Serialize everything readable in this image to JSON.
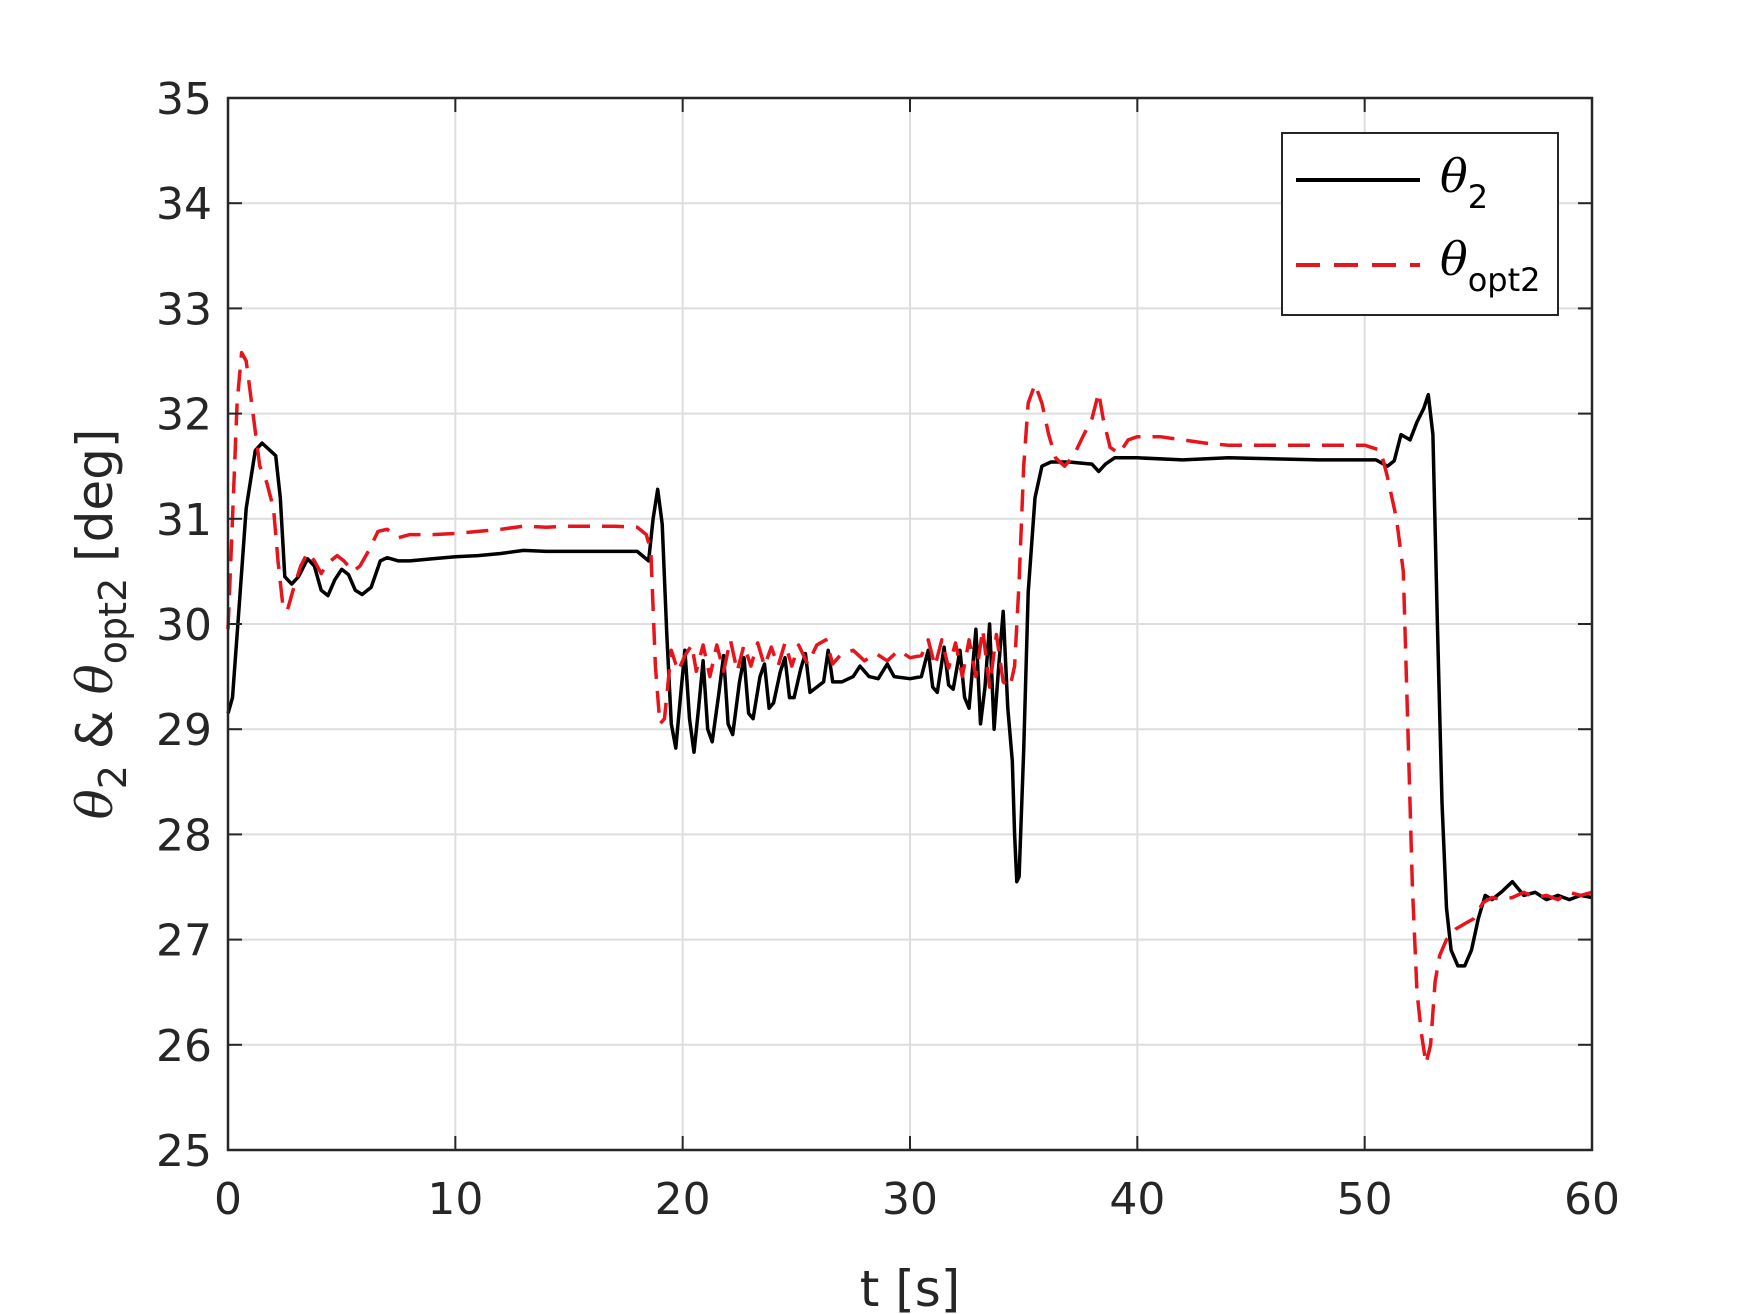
{
  "chart_data": {
    "type": "line",
    "xlabel": "t [s]",
    "ylabel": {
      "sym1": "θ",
      "sub1": "2",
      "amp": " & ",
      "sym2": "θ",
      "sub2": "opt2",
      "unit": " [deg]"
    },
    "xlim": [
      0,
      60
    ],
    "ylim": [
      25,
      35
    ],
    "xticks": [
      0,
      10,
      20,
      30,
      40,
      50,
      60
    ],
    "yticks": [
      25,
      26,
      27,
      28,
      29,
      30,
      31,
      32,
      33,
      34,
      35
    ],
    "grid": true,
    "legend_position": "top-right",
    "series": [
      {
        "name": "θ2",
        "legend_symbol": "θ",
        "legend_sub": "2",
        "color": "#000000",
        "style": "solid",
        "points": [
          [
            0.0,
            29.15
          ],
          [
            0.2,
            29.3
          ],
          [
            0.5,
            30.2
          ],
          [
            0.8,
            31.1
          ],
          [
            1.2,
            31.65
          ],
          [
            1.5,
            31.72
          ],
          [
            1.8,
            31.66
          ],
          [
            2.1,
            31.6
          ],
          [
            2.3,
            31.2
          ],
          [
            2.5,
            30.45
          ],
          [
            2.8,
            30.38
          ],
          [
            3.1,
            30.45
          ],
          [
            3.5,
            30.62
          ],
          [
            3.8,
            30.55
          ],
          [
            4.1,
            30.32
          ],
          [
            4.4,
            30.27
          ],
          [
            4.7,
            30.42
          ],
          [
            5.0,
            30.52
          ],
          [
            5.3,
            30.47
          ],
          [
            5.6,
            30.32
          ],
          [
            5.9,
            30.28
          ],
          [
            6.3,
            30.35
          ],
          [
            6.7,
            30.6
          ],
          [
            7.0,
            30.63
          ],
          [
            7.5,
            30.6
          ],
          [
            8.0,
            30.6
          ],
          [
            9.0,
            30.62
          ],
          [
            10.0,
            30.64
          ],
          [
            11.0,
            30.65
          ],
          [
            12.0,
            30.67
          ],
          [
            13.0,
            30.7
          ],
          [
            14.0,
            30.69
          ],
          [
            15.0,
            30.69
          ],
          [
            16.0,
            30.69
          ],
          [
            17.0,
            30.69
          ],
          [
            18.0,
            30.69
          ],
          [
            18.5,
            30.6
          ],
          [
            18.7,
            31.0
          ],
          [
            18.9,
            31.28
          ],
          [
            19.1,
            30.95
          ],
          [
            19.3,
            29.9
          ],
          [
            19.5,
            29.05
          ],
          [
            19.7,
            28.82
          ],
          [
            19.9,
            29.3
          ],
          [
            20.1,
            29.75
          ],
          [
            20.3,
            29.1
          ],
          [
            20.5,
            28.78
          ],
          [
            20.7,
            29.2
          ],
          [
            20.9,
            29.65
          ],
          [
            21.1,
            29.0
          ],
          [
            21.3,
            28.88
          ],
          [
            21.6,
            29.35
          ],
          [
            21.8,
            29.7
          ],
          [
            22.0,
            29.05
          ],
          [
            22.2,
            28.95
          ],
          [
            22.5,
            29.45
          ],
          [
            22.7,
            29.68
          ],
          [
            22.9,
            29.15
          ],
          [
            23.1,
            29.1
          ],
          [
            23.4,
            29.5
          ],
          [
            23.6,
            29.62
          ],
          [
            23.8,
            29.2
          ],
          [
            24.0,
            29.25
          ],
          [
            24.3,
            29.55
          ],
          [
            24.5,
            29.68
          ],
          [
            24.7,
            29.3
          ],
          [
            24.9,
            29.3
          ],
          [
            25.2,
            29.58
          ],
          [
            25.4,
            29.72
          ],
          [
            25.6,
            29.35
          ],
          [
            25.9,
            29.4
          ],
          [
            26.2,
            29.45
          ],
          [
            26.4,
            29.75
          ],
          [
            26.6,
            29.45
          ],
          [
            27.0,
            29.45
          ],
          [
            27.5,
            29.5
          ],
          [
            27.8,
            29.6
          ],
          [
            28.2,
            29.5
          ],
          [
            28.6,
            29.48
          ],
          [
            29.0,
            29.62
          ],
          [
            29.3,
            29.5
          ],
          [
            30.0,
            29.48
          ],
          [
            30.5,
            29.5
          ],
          [
            30.8,
            29.75
          ],
          [
            31.0,
            29.4
          ],
          [
            31.2,
            29.35
          ],
          [
            31.5,
            29.78
          ],
          [
            31.7,
            29.42
          ],
          [
            31.9,
            29.38
          ],
          [
            32.2,
            29.75
          ],
          [
            32.4,
            29.3
          ],
          [
            32.6,
            29.2
          ],
          [
            32.9,
            29.95
          ],
          [
            33.1,
            29.05
          ],
          [
            33.3,
            29.4
          ],
          [
            33.5,
            30.0
          ],
          [
            33.7,
            29.0
          ],
          [
            33.9,
            29.6
          ],
          [
            34.1,
            30.12
          ],
          [
            34.3,
            29.2
          ],
          [
            34.5,
            28.7
          ],
          [
            34.6,
            28.0
          ],
          [
            34.7,
            27.55
          ],
          [
            34.8,
            27.6
          ],
          [
            35.0,
            28.8
          ],
          [
            35.2,
            30.3
          ],
          [
            35.5,
            31.2
          ],
          [
            35.8,
            31.5
          ],
          [
            36.2,
            31.54
          ],
          [
            37.0,
            31.54
          ],
          [
            38.0,
            31.52
          ],
          [
            38.3,
            31.45
          ],
          [
            38.6,
            31.52
          ],
          [
            39.0,
            31.58
          ],
          [
            40.0,
            31.58
          ],
          [
            42.0,
            31.56
          ],
          [
            44.0,
            31.58
          ],
          [
            48.0,
            31.56
          ],
          [
            50.5,
            31.56
          ],
          [
            51.0,
            31.5
          ],
          [
            51.3,
            31.55
          ],
          [
            51.6,
            31.8
          ],
          [
            52.0,
            31.75
          ],
          [
            52.3,
            31.92
          ],
          [
            52.6,
            32.05
          ],
          [
            52.8,
            32.18
          ],
          [
            53.0,
            31.8
          ],
          [
            53.2,
            30.0
          ],
          [
            53.4,
            28.3
          ],
          [
            53.6,
            27.3
          ],
          [
            53.8,
            26.9
          ],
          [
            54.1,
            26.75
          ],
          [
            54.4,
            26.75
          ],
          [
            54.7,
            26.9
          ],
          [
            55.0,
            27.2
          ],
          [
            55.3,
            27.42
          ],
          [
            55.6,
            27.38
          ],
          [
            56.0,
            27.45
          ],
          [
            56.5,
            27.55
          ],
          [
            57.0,
            27.42
          ],
          [
            57.5,
            27.45
          ],
          [
            58.0,
            27.38
          ],
          [
            58.5,
            27.42
          ],
          [
            59.0,
            27.38
          ],
          [
            59.5,
            27.42
          ],
          [
            60.0,
            27.4
          ]
        ]
      },
      {
        "name": "θopt2",
        "legend_symbol": "θ",
        "legend_sub": "opt2",
        "color": "#e8141c",
        "style": "dashed",
        "points": [
          [
            0.0,
            29.95
          ],
          [
            0.2,
            31.0
          ],
          [
            0.4,
            32.1
          ],
          [
            0.6,
            32.58
          ],
          [
            0.8,
            32.5
          ],
          [
            1.1,
            32.0
          ],
          [
            1.4,
            31.5
          ],
          [
            1.7,
            31.35
          ],
          [
            2.0,
            31.1
          ],
          [
            2.2,
            30.6
          ],
          [
            2.4,
            30.2
          ],
          [
            2.6,
            30.12
          ],
          [
            2.9,
            30.35
          ],
          [
            3.2,
            30.55
          ],
          [
            3.5,
            30.68
          ],
          [
            3.8,
            30.6
          ],
          [
            4.1,
            30.48
          ],
          [
            4.4,
            30.58
          ],
          [
            4.8,
            30.65
          ],
          [
            5.1,
            30.6
          ],
          [
            5.5,
            30.5
          ],
          [
            5.8,
            30.55
          ],
          [
            6.2,
            30.7
          ],
          [
            6.6,
            30.88
          ],
          [
            7.0,
            30.9
          ],
          [
            7.5,
            30.82
          ],
          [
            8.0,
            30.85
          ],
          [
            9.0,
            30.85
          ],
          [
            10.0,
            30.86
          ],
          [
            11.0,
            30.88
          ],
          [
            12.0,
            30.9
          ],
          [
            13.0,
            30.93
          ],
          [
            14.0,
            30.92
          ],
          [
            15.0,
            30.93
          ],
          [
            16.0,
            30.93
          ],
          [
            17.0,
            30.93
          ],
          [
            18.0,
            30.92
          ],
          [
            18.4,
            30.85
          ],
          [
            18.6,
            30.7
          ],
          [
            18.8,
            29.6
          ],
          [
            19.0,
            29.05
          ],
          [
            19.2,
            29.1
          ],
          [
            19.5,
            29.75
          ],
          [
            19.8,
            29.55
          ],
          [
            20.1,
            29.7
          ],
          [
            20.4,
            29.8
          ],
          [
            20.6,
            29.55
          ],
          [
            20.9,
            29.8
          ],
          [
            21.2,
            29.5
          ],
          [
            21.5,
            29.8
          ],
          [
            21.8,
            29.55
          ],
          [
            22.1,
            29.85
          ],
          [
            22.4,
            29.55
          ],
          [
            22.7,
            29.8
          ],
          [
            23.0,
            29.6
          ],
          [
            23.3,
            29.82
          ],
          [
            23.6,
            29.6
          ],
          [
            23.9,
            29.78
          ],
          [
            24.2,
            29.6
          ],
          [
            24.5,
            29.82
          ],
          [
            24.8,
            29.6
          ],
          [
            25.1,
            29.8
          ],
          [
            25.5,
            29.62
          ],
          [
            25.9,
            29.8
          ],
          [
            26.3,
            29.85
          ],
          [
            26.6,
            29.62
          ],
          [
            27.0,
            29.72
          ],
          [
            27.5,
            29.75
          ],
          [
            28.0,
            29.65
          ],
          [
            28.5,
            29.72
          ],
          [
            29.0,
            29.65
          ],
          [
            29.5,
            29.75
          ],
          [
            30.0,
            29.68
          ],
          [
            30.5,
            29.7
          ],
          [
            30.8,
            29.85
          ],
          [
            31.1,
            29.6
          ],
          [
            31.4,
            29.85
          ],
          [
            31.7,
            29.58
          ],
          [
            32.0,
            29.82
          ],
          [
            32.3,
            29.5
          ],
          [
            32.6,
            29.85
          ],
          [
            32.9,
            29.5
          ],
          [
            33.2,
            29.95
          ],
          [
            33.5,
            29.4
          ],
          [
            33.8,
            29.9
          ],
          [
            34.1,
            29.45
          ],
          [
            34.4,
            29.4
          ],
          [
            34.6,
            29.6
          ],
          [
            34.8,
            30.4
          ],
          [
            35.0,
            31.5
          ],
          [
            35.2,
            32.1
          ],
          [
            35.5,
            32.28
          ],
          [
            35.8,
            32.1
          ],
          [
            36.1,
            31.8
          ],
          [
            36.4,
            31.58
          ],
          [
            36.8,
            31.5
          ],
          [
            37.2,
            31.6
          ],
          [
            37.6,
            31.78
          ],
          [
            38.0,
            31.95
          ],
          [
            38.3,
            32.2
          ],
          [
            38.5,
            31.95
          ],
          [
            38.8,
            31.68
          ],
          [
            39.2,
            31.62
          ],
          [
            39.6,
            31.75
          ],
          [
            40.0,
            31.78
          ],
          [
            41.0,
            31.78
          ],
          [
            42.0,
            31.75
          ],
          [
            43.0,
            31.72
          ],
          [
            44.0,
            31.7
          ],
          [
            46.0,
            31.7
          ],
          [
            48.0,
            31.7
          ],
          [
            50.0,
            31.7
          ],
          [
            50.7,
            31.65
          ],
          [
            51.0,
            31.4
          ],
          [
            51.4,
            31.0
          ],
          [
            51.7,
            30.5
          ],
          [
            51.9,
            29.0
          ],
          [
            52.1,
            27.5
          ],
          [
            52.3,
            26.5
          ],
          [
            52.5,
            26.1
          ],
          [
            52.7,
            25.82
          ],
          [
            52.9,
            26.0
          ],
          [
            53.1,
            26.6
          ],
          [
            53.3,
            26.85
          ],
          [
            53.6,
            27.0
          ],
          [
            54.0,
            27.1
          ],
          [
            54.4,
            27.15
          ],
          [
            54.8,
            27.2
          ],
          [
            55.2,
            27.35
          ],
          [
            55.6,
            27.4
          ],
          [
            56.0,
            27.38
          ],
          [
            56.5,
            27.4
          ],
          [
            57.0,
            27.45
          ],
          [
            57.5,
            27.4
          ],
          [
            58.0,
            27.42
          ],
          [
            58.5,
            27.38
          ],
          [
            59.0,
            27.45
          ],
          [
            59.5,
            27.42
          ],
          [
            60.0,
            27.45
          ]
        ]
      }
    ]
  }
}
